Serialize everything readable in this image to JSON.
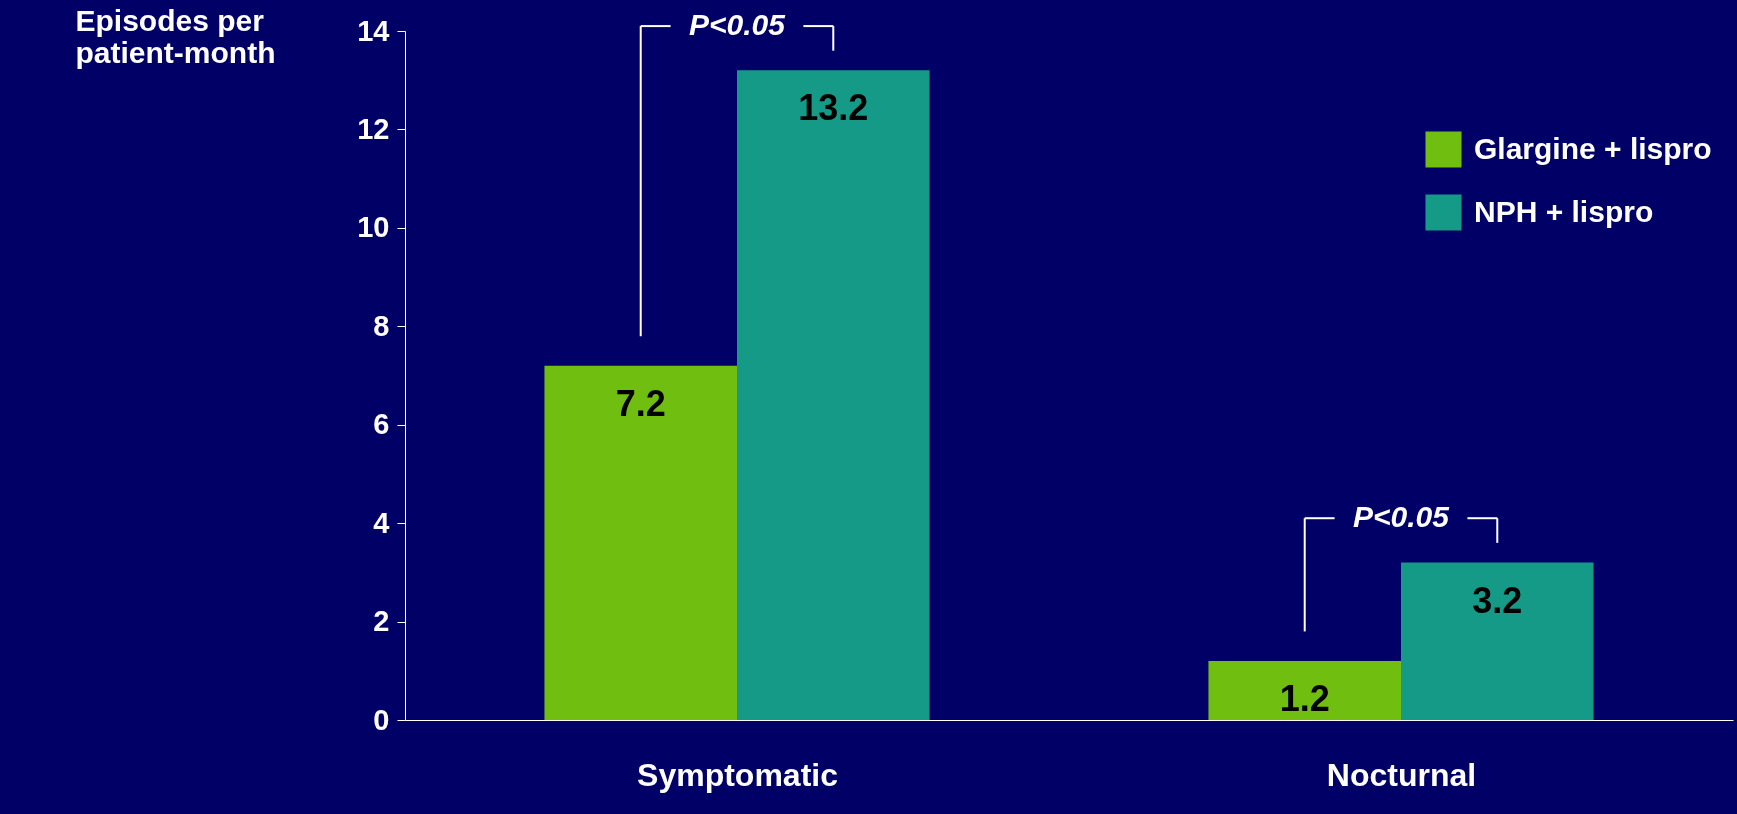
{
  "chart_data": {
    "type": "bar",
    "ylabel": "Episodes per patient-month",
    "categories": [
      "Symptomatic",
      "Nocturnal"
    ],
    "series": [
      {
        "name": "Glargine + lispro",
        "color": "#6fbe10",
        "values": [
          7.2,
          1.2
        ]
      },
      {
        "name": "NPH  + lispro",
        "color": "#169a88",
        "values": [
          13.2,
          3.2
        ]
      }
    ],
    "ylim": [
      0,
      14
    ],
    "yticks": [
      0,
      2,
      4,
      6,
      8,
      10,
      12,
      14
    ],
    "grid": false,
    "legend": "top right",
    "data_labels": true,
    "annotations": [
      "P<0.05",
      "P<0.05"
    ]
  }
}
